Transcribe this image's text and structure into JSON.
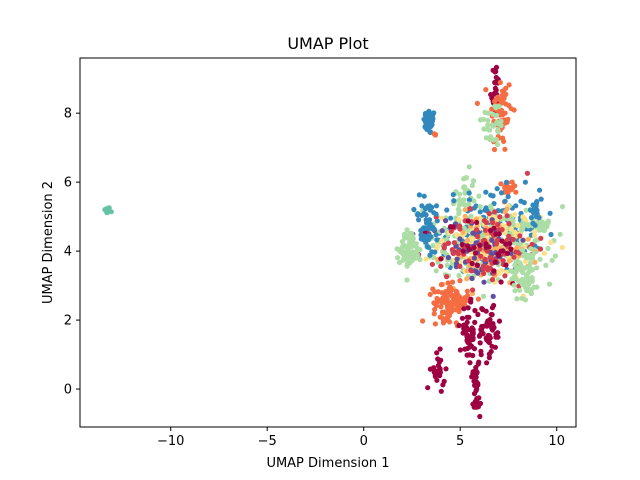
{
  "chart_data": {
    "type": "scatter",
    "title": "UMAP Plot",
    "xlabel": "UMAP Dimension 1",
    "ylabel": "UMAP Dimension 2",
    "xlim": [
      -14.7,
      11.0
    ],
    "ylim": [
      -1.1,
      9.6
    ],
    "xticks": [
      -10,
      -5,
      0,
      5,
      10
    ],
    "yticks": [
      0,
      2,
      4,
      6,
      8
    ],
    "grid": false,
    "legend": "none",
    "palette": {
      "dark_red": "#9e0142",
      "red": "#d53e4f",
      "orange_red": "#f46d43",
      "orange": "#fdae61",
      "yellow": "#fee08b",
      "pale_green": "#e6f598",
      "light_green": "#abdda4",
      "teal": "#66c2a5",
      "blue": "#3288bd",
      "purple": "#5e4fa2"
    },
    "clusters": [
      {
        "color": "#66c2a5",
        "cx": -13.3,
        "cy": 5.18,
        "sx": 0.08,
        "sy": 0.05,
        "n": 14
      },
      {
        "color": "#3288bd",
        "cx": 3.4,
        "cy": 7.75,
        "sx": 0.15,
        "sy": 0.18,
        "n": 40
      },
      {
        "color": "#f46d43",
        "cx": 3.75,
        "cy": 7.4,
        "sx": 0.05,
        "sy": 0.05,
        "n": 3
      },
      {
        "color": "#9e0142",
        "cx": 6.8,
        "cy": 8.7,
        "sx": 0.12,
        "sy": 0.4,
        "n": 25
      },
      {
        "color": "#f46d43",
        "cx": 7.1,
        "cy": 8.0,
        "sx": 0.3,
        "sy": 0.6,
        "n": 60
      },
      {
        "color": "#abdda4",
        "cx": 6.7,
        "cy": 7.7,
        "sx": 0.3,
        "sy": 0.35,
        "n": 30
      },
      {
        "color": "#f46d43",
        "cx": 7.6,
        "cy": 5.85,
        "sx": 0.2,
        "sy": 0.1,
        "n": 20
      },
      {
        "color": "#abdda4",
        "cx": 5.2,
        "cy": 5.6,
        "sx": 0.3,
        "sy": 0.35,
        "n": 30
      },
      {
        "color": "#3288bd",
        "cx": 6.6,
        "cy": 4.6,
        "sx": 1.3,
        "sy": 0.6,
        "n": 160
      },
      {
        "color": "#abdda4",
        "cx": 6.2,
        "cy": 4.2,
        "sx": 1.9,
        "sy": 0.55,
        "n": 220
      },
      {
        "color": "#fee08b",
        "cx": 6.5,
        "cy": 4.2,
        "sx": 1.3,
        "sy": 0.5,
        "n": 130
      },
      {
        "color": "#fdae61",
        "cx": 6.4,
        "cy": 4.0,
        "sx": 1.1,
        "sy": 0.5,
        "n": 80
      },
      {
        "color": "#5e4fa2",
        "cx": 5.6,
        "cy": 4.0,
        "sx": 1.2,
        "sy": 0.5,
        "n": 60
      },
      {
        "color": "#d53e4f",
        "cx": 6.5,
        "cy": 4.2,
        "sx": 1.2,
        "sy": 0.6,
        "n": 90
      },
      {
        "color": "#9e0142",
        "cx": 6.0,
        "cy": 4.0,
        "sx": 1.2,
        "sy": 0.5,
        "n": 40
      },
      {
        "color": "#3288bd",
        "cx": 3.3,
        "cy": 4.7,
        "sx": 0.35,
        "sy": 0.45,
        "n": 50
      },
      {
        "color": "#abdda4",
        "cx": 2.4,
        "cy": 4.1,
        "sx": 0.25,
        "sy": 0.25,
        "n": 60
      },
      {
        "color": "#abdda4",
        "cx": 8.4,
        "cy": 3.4,
        "sx": 0.35,
        "sy": 0.4,
        "n": 60
      },
      {
        "color": "#abdda4",
        "cx": 9.0,
        "cy": 4.75,
        "sx": 0.4,
        "sy": 0.06,
        "n": 30
      },
      {
        "color": "#3288bd",
        "cx": 8.9,
        "cy": 5.2,
        "sx": 0.15,
        "sy": 0.2,
        "n": 20
      },
      {
        "color": "#f46d43",
        "cx": 4.5,
        "cy": 2.5,
        "sx": 0.45,
        "sy": 0.25,
        "n": 120
      },
      {
        "color": "#9e0142",
        "cx": 5.5,
        "cy": 1.6,
        "sx": 0.25,
        "sy": 0.4,
        "n": 50
      },
      {
        "color": "#9e0142",
        "cx": 6.5,
        "cy": 1.7,
        "sx": 0.3,
        "sy": 0.4,
        "n": 50
      },
      {
        "color": "#9e0142",
        "cx": 5.8,
        "cy": 0.4,
        "sx": 0.1,
        "sy": 0.3,
        "n": 25
      },
      {
        "color": "#9e0142",
        "cx": 5.85,
        "cy": -0.45,
        "sx": 0.08,
        "sy": 0.12,
        "n": 18
      },
      {
        "color": "#9e0142",
        "cx": 3.85,
        "cy": 0.5,
        "sx": 0.18,
        "sy": 0.25,
        "n": 25
      }
    ]
  }
}
